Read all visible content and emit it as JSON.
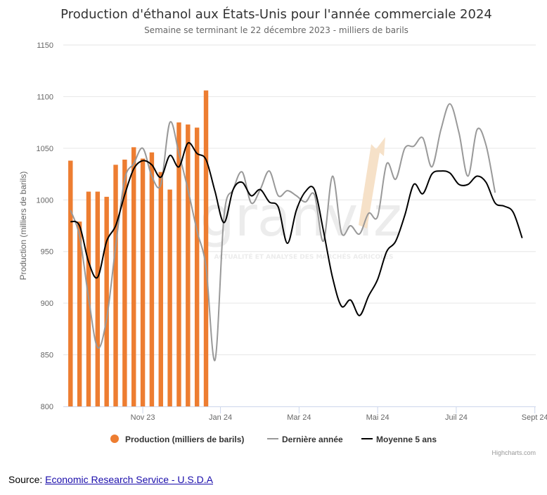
{
  "colors": {
    "production": "#ed7d31",
    "last_year": "#999999",
    "avg5": "#000000",
    "grid": "#e6e6e6",
    "axis": "#ccd6eb",
    "watermark_accent": "#f6d9b6"
  },
  "watermark": {
    "logo": "granviz",
    "tagline": "ACTUALITÉ ET ANALYSE DES MARCHÉS AGRICOLES"
  },
  "chart_data": {
    "type": "bar+line",
    "title": "Production d'éthanol aux États-Unis pour l'année commerciale 2024",
    "subtitle": "Semaine se terminant le 22 décembre 2023 - milliers de barils",
    "ylabel": "Production (milliers de barils)",
    "xlabel": "",
    "ylim": [
      800,
      1150
    ],
    "yticks": [
      800,
      850,
      900,
      950,
      1000,
      1050,
      1100,
      1150
    ],
    "xlim": [
      -0.8,
      51.5
    ],
    "xticks": [
      {
        "label": "Nov 23",
        "week": 8
      },
      {
        "label": "Jan 24",
        "week": 16.6
      },
      {
        "label": "Mar 24",
        "week": 25.3
      },
      {
        "label": "Mai 24",
        "week": 34
      },
      {
        "label": "Juil 24",
        "week": 42.7
      },
      {
        "label": "Sept 24",
        "week": 51.4
      }
    ],
    "grid": true,
    "legend_position": "bottom",
    "credits": "Highcharts.com",
    "series": [
      {
        "name": "Production (milliers de barils)",
        "type": "bar",
        "values": [
          1038,
          979,
          1008,
          1008,
          1003,
          1034,
          1039,
          1051,
          1040,
          1046,
          1027,
          1010,
          1075,
          1073,
          1070,
          1106
        ]
      },
      {
        "name": "Dernière année",
        "type": "line",
        "values": [
          990,
          965,
          905,
          857,
          885,
          955,
          1020,
          1035,
          1050,
          1023,
          1015,
          1075,
          1045,
          1010,
          970,
          935,
          845,
          985,
          1010,
          1027,
          997,
          1010,
          1028,
          1004,
          1009,
          1004,
          998,
          1005,
          960,
          1023,
          968,
          975,
          967,
          987,
          984,
          1035,
          1020,
          1050,
          1052,
          1060,
          1032,
          1068,
          1093,
          1065,
          1023,
          1068,
          1053,
          1007
        ]
      },
      {
        "name": "Moyenne 5 ans",
        "type": "line",
        "values": [
          979,
          975,
          940,
          925,
          960,
          975,
          1005,
          1030,
          1038,
          1034,
          1022,
          1043,
          1032,
          1055,
          1045,
          1039,
          1008,
          978,
          1010,
          1017,
          1004,
          1010,
          998,
          993,
          958,
          990,
          1008,
          1010,
          970,
          925,
          897,
          903,
          888,
          907,
          923,
          950,
          960,
          985,
          1015,
          1006,
          1025,
          1028,
          1026,
          1015,
          1015,
          1023,
          1017,
          997,
          994,
          988,
          963
        ]
      }
    ]
  },
  "source": {
    "label": "Source: ",
    "link_text": "Economic Research Service - U.S.D.A"
  }
}
